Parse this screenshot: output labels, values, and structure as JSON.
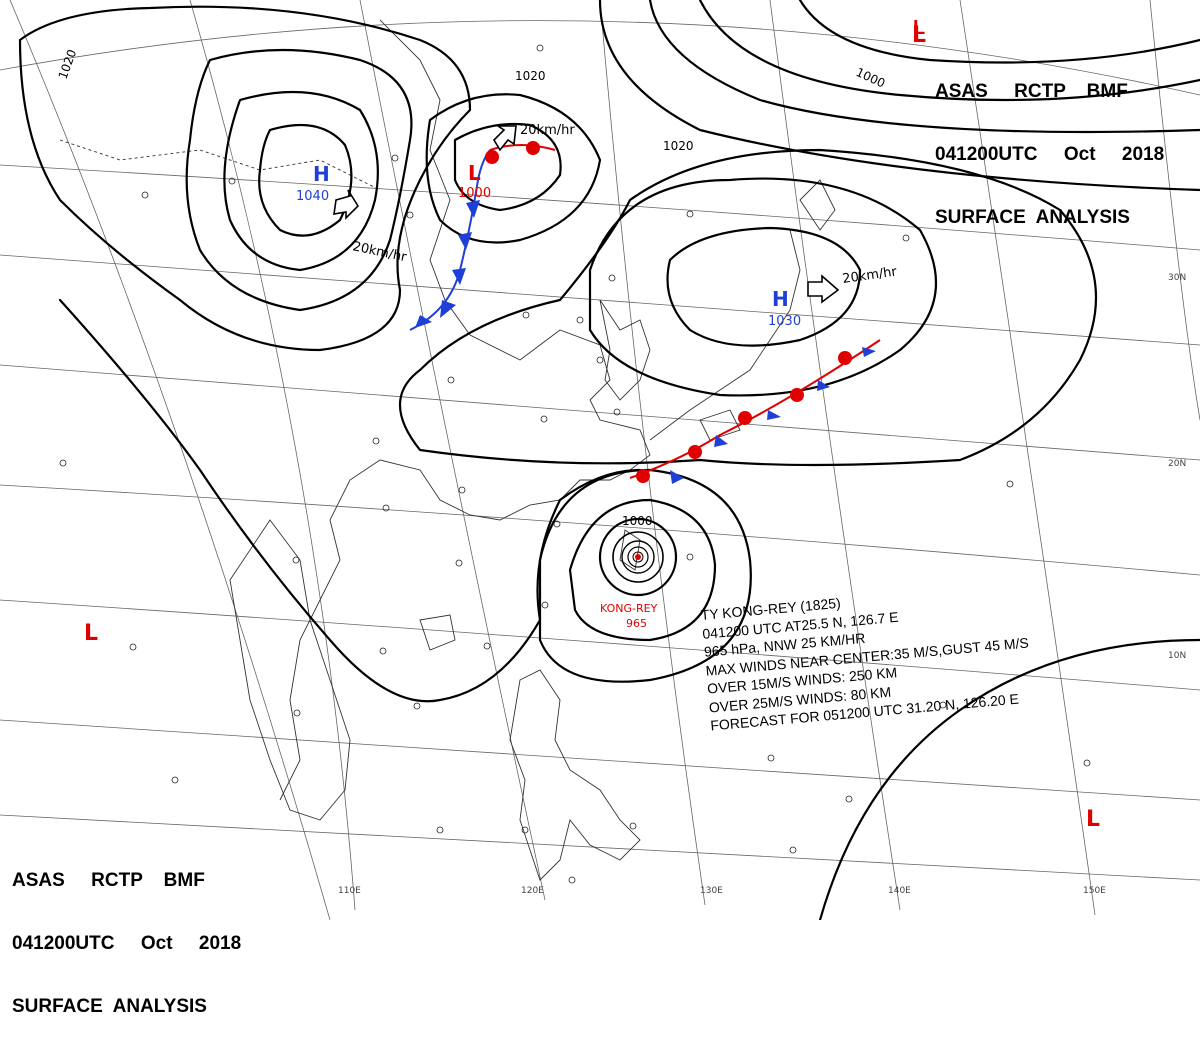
{
  "header": {
    "line1": "ASAS     RCTP    BMF",
    "line2": "041200UTC     Oct     2018",
    "line3": "SURFACE  ANALYSIS"
  },
  "footer": {
    "line1": "ASAS     RCTP    BMF",
    "line2": "041200UTC     Oct     2018",
    "line3": "SURFACE  ANALYSIS"
  },
  "pressure_centers": [
    {
      "type": "H",
      "value": "1040",
      "color": "#1f3fd6"
    },
    {
      "type": "L",
      "value": "1000",
      "color": "#e00000"
    },
    {
      "type": "H",
      "value": "1030",
      "color": "#1f3fd6"
    }
  ],
  "low_markers": [
    "L",
    "L",
    "L"
  ],
  "motion_labels": [
    "20km/hr",
    "20km/hr",
    "20km/hr"
  ],
  "isobar_labels": [
    "1020",
    "1020",
    "1020",
    "1000",
    "1000"
  ],
  "typhoon": {
    "name": "KONG-REY",
    "pressure": "965",
    "bulletin": [
      "TY  KONG-REY (1825)",
      "041200 UTC  AT25.5 N, 126.7 E",
      "965 hPa, NNW  25 KM/HR",
      "MAX WINDS NEAR CENTER:35 M/S,GUST 45 M/S",
      "OVER 15M/S WINDS: 250 KM",
      "OVER 25M/S WINDS: 80 KM",
      "FORECAST FOR 051200 UTC 31.20 N, 126.20 E"
    ]
  },
  "longitude_labels": [
    "110E",
    "120E",
    "130E",
    "140E",
    "150E"
  ],
  "latitude_labels": [
    "30N",
    "20N",
    "10N"
  ],
  "colors": {
    "warm_front": "#e00000",
    "cold_front": "#1f3fd6",
    "isobar": "#000000",
    "coast": "#222222"
  }
}
